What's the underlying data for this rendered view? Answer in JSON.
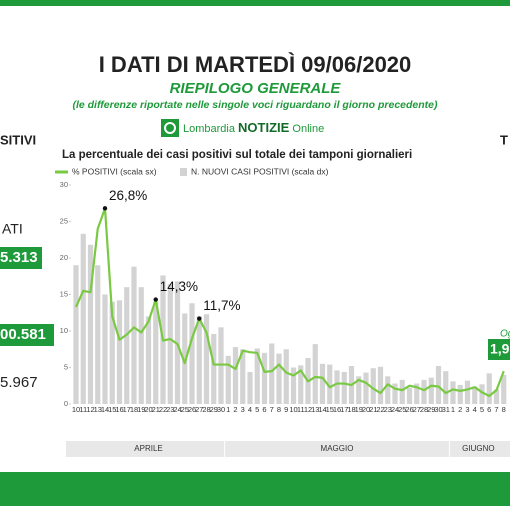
{
  "header": {
    "title": "I DATI DI MARTEDÌ 09/06/2020",
    "subtitle": "RIEPILOGO GENERALE",
    "note": "(le differenze riportate nelle singole voci riguardano il giorno precedente)"
  },
  "logo": {
    "brand": "Lombardia",
    "name": "NOTIZIE",
    "suffix": "Online"
  },
  "side_left": {
    "heading": "SITIVI",
    "label": "ATI",
    "box1": "5.313",
    "box2": "00.581",
    "value": "5.967"
  },
  "side_right": {
    "heading": "T",
    "label": "Og",
    "box": "1,9"
  },
  "chart_data": {
    "type": "combo",
    "title": "La percentuale dei casi positivi sul totale dei tamponi giornalieri",
    "categories": [
      "10",
      "11",
      "12",
      "13",
      "14",
      "15",
      "16",
      "17",
      "18",
      "19",
      "20",
      "21",
      "22",
      "23",
      "24",
      "25",
      "26",
      "27",
      "28",
      "29",
      "30",
      "1",
      "2",
      "3",
      "4",
      "5",
      "6",
      "7",
      "8",
      "9",
      "10",
      "11",
      "12",
      "13",
      "14",
      "15",
      "16",
      "17",
      "18",
      "19",
      "20",
      "21",
      "22",
      "23",
      "24",
      "25",
      "26",
      "27",
      "28",
      "29",
      "30",
      "31",
      "1",
      "2",
      "3",
      "4",
      "5",
      "6",
      "7",
      "8"
    ],
    "x_groups": [
      "APRILE",
      "MAGGIO",
      "GIUGNO"
    ],
    "ylim": [
      0,
      30
    ],
    "yticks": [
      0,
      5,
      10,
      15,
      20,
      25,
      30
    ],
    "y2lim": [
      0,
      2000
    ],
    "series": [
      {
        "name": "N. NUOVI CASI POSITIVI (scala dx)",
        "type": "bar",
        "axis": "y2",
        "color": "#d3d3d3",
        "values": [
          1267,
          1554,
          1454,
          1267,
          1000,
          934,
          947,
          1067,
          1254,
          1067,
          800,
          934,
          1174,
          1094,
          1120,
          827,
          920,
          800,
          820,
          640,
          700,
          440,
          520,
          500,
          293,
          507,
          467,
          553,
          460,
          500,
          333,
          353,
          420,
          547,
          367,
          360,
          307,
          293,
          347,
          253,
          287,
          327,
          340,
          253,
          187,
          220,
          147,
          187,
          220,
          240,
          347,
          300,
          207,
          173,
          213,
          160,
          180,
          280,
          133,
          267
        ]
      },
      {
        "name": "% POSITIVI (scala sx)",
        "type": "line",
        "color": "#7ac943",
        "values": [
          13.3,
          15.5,
          15.3,
          24,
          26.8,
          12,
          8.8,
          9.5,
          10.5,
          9.8,
          11.3,
          14.3,
          8.7,
          8.9,
          8.2,
          5.6,
          9,
          11.7,
          9.8,
          5.4,
          5.4,
          5.4,
          4.8,
          7.3,
          7.1,
          7,
          4.4,
          4.5,
          5.4,
          4.3,
          3.9,
          4.6,
          3.1,
          3.7,
          3.6,
          2.3,
          2.8,
          2.8,
          2.6,
          3.3,
          2.9,
          2.1,
          1.5,
          2.7,
          2.1,
          1.9,
          2.5,
          2.3,
          1.9,
          2.5,
          2.4,
          1.5,
          2,
          1.8,
          2,
          2.3,
          1.6,
          1.1,
          1.9,
          4.5
        ],
        "value_labels": [
          null,
          null,
          null,
          null,
          "26,8%",
          null,
          null,
          null,
          null,
          null,
          null,
          "14,3%",
          null,
          null,
          null,
          null,
          null,
          "11,7%",
          null,
          null,
          null,
          null,
          null,
          null,
          null,
          null,
          null,
          null,
          null,
          null,
          null,
          null,
          null,
          null,
          null,
          null,
          null,
          null,
          null,
          null,
          null,
          null,
          null,
          null,
          null,
          null,
          null,
          null,
          null,
          null,
          null,
          null,
          null,
          null,
          null,
          null,
          null,
          null,
          null,
          null
        ]
      }
    ]
  }
}
